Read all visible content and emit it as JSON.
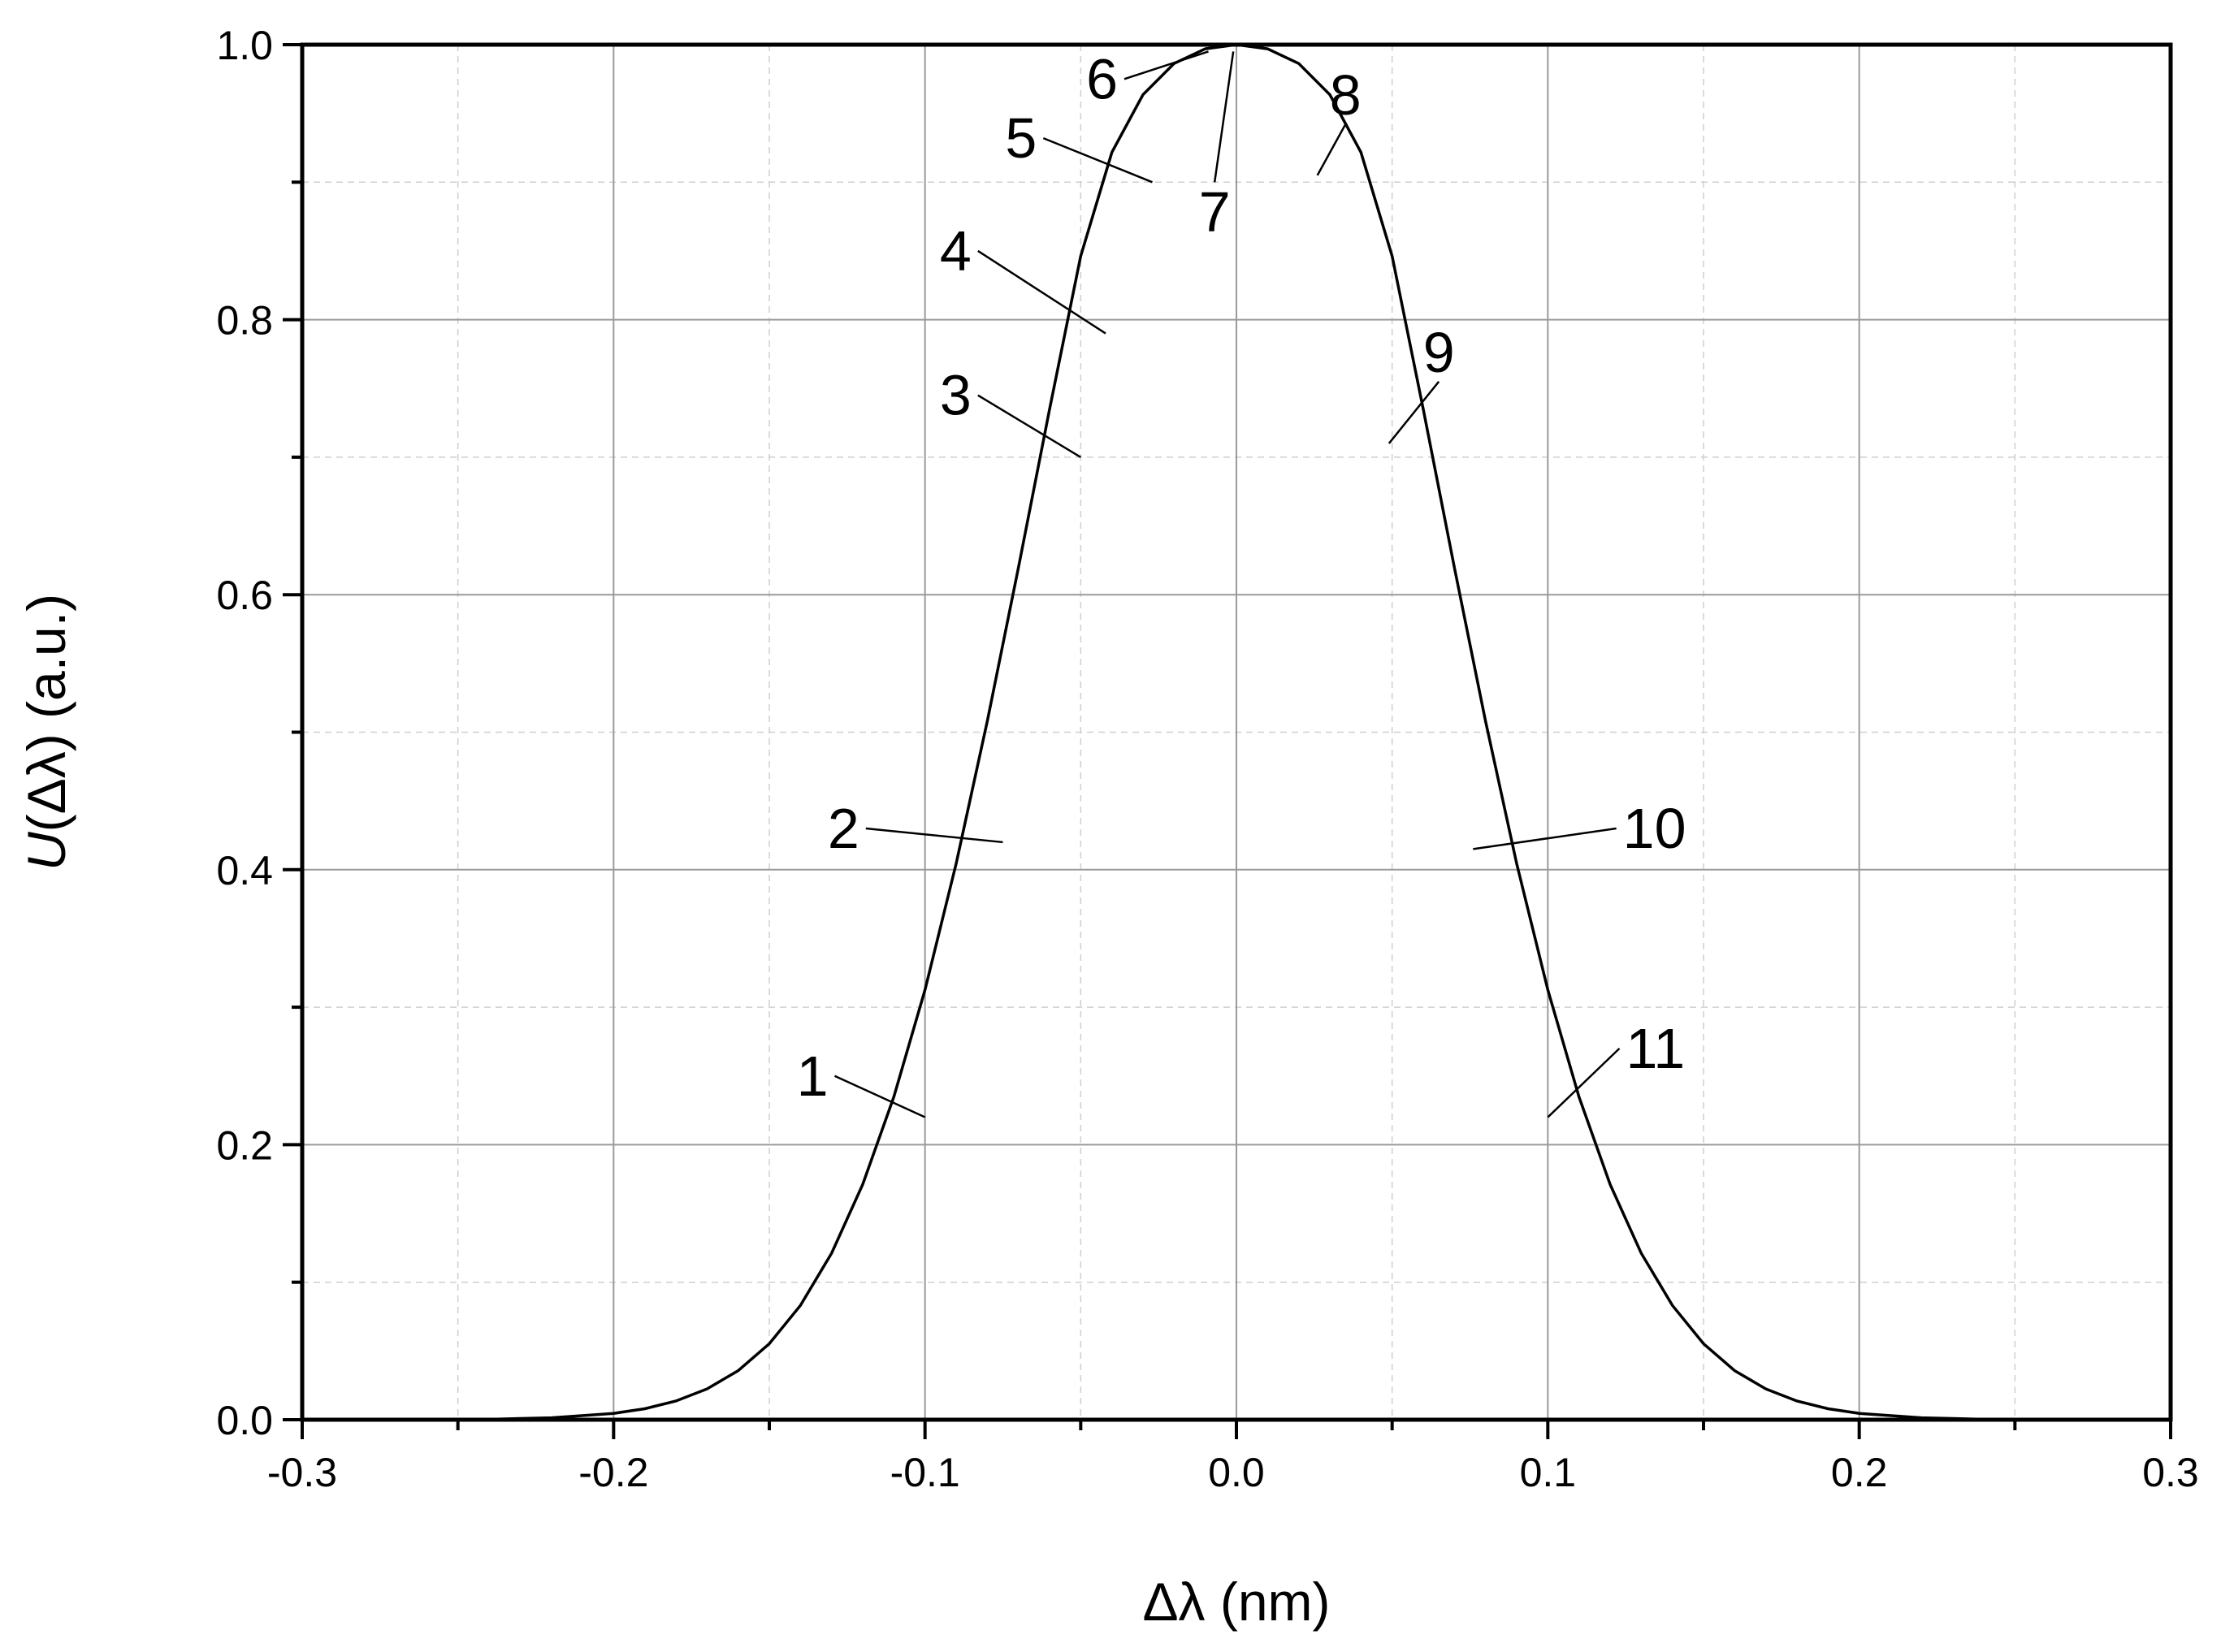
{
  "chart_data": {
    "type": "line",
    "title": "",
    "xlabel": "Δλ (nm)",
    "ylabel_italic": "U",
    "ylabel_rest": "(Δλ) (a.u.)",
    "xlim": [
      -0.3,
      0.3
    ],
    "ylim": [
      0.0,
      1.0
    ],
    "x_major_ticks": [
      -0.3,
      -0.2,
      -0.1,
      0.0,
      0.1,
      0.2,
      0.3
    ],
    "x_tick_labels": [
      "-0.3",
      "-0.2",
      "-0.1",
      "0.0",
      "0.1",
      "0.2",
      "0.3"
    ],
    "x_minor_ticks": [
      -0.25,
      -0.15,
      -0.05,
      0.05,
      0.15,
      0.25
    ],
    "y_major_ticks": [
      0.0,
      0.2,
      0.4,
      0.6,
      0.8,
      1.0
    ],
    "y_tick_labels": [
      "0.0",
      "0.2",
      "0.4",
      "0.6",
      "0.8",
      "1.0"
    ],
    "y_minor_ticks": [
      0.1,
      0.3,
      0.5,
      0.7,
      0.9
    ],
    "grid": true,
    "series": [
      {
        "x": [
          -0.3,
          -0.26,
          -0.24,
          -0.22,
          -0.2,
          -0.19,
          -0.18,
          -0.17,
          -0.16,
          -0.15,
          -0.14,
          -0.13,
          -0.12,
          -0.11,
          -0.1,
          -0.09,
          -0.08,
          -0.07,
          -0.06,
          -0.05,
          -0.04,
          -0.03,
          -0.02,
          -0.01,
          0.0,
          0.01,
          0.02,
          0.03,
          0.04,
          0.05,
          0.06,
          0.07,
          0.08,
          0.09,
          0.1,
          0.11,
          0.12,
          0.13,
          0.14,
          0.15,
          0.16,
          0.17,
          0.18,
          0.19,
          0.2,
          0.22,
          0.24,
          0.26,
          0.3
        ],
        "y": [
          0.0,
          0.0,
          0.0003,
          0.0014,
          0.0046,
          0.008,
          0.0136,
          0.0224,
          0.0357,
          0.0553,
          0.0831,
          0.1211,
          0.1712,
          0.2348,
          0.3127,
          0.4044,
          0.5079,
          0.6198,
          0.7349,
          0.8462,
          0.9217,
          0.9637,
          0.9863,
          0.997,
          1.0,
          0.997,
          0.9863,
          0.9637,
          0.9217,
          0.8462,
          0.7349,
          0.6198,
          0.5079,
          0.4044,
          0.3127,
          0.2348,
          0.1712,
          0.1211,
          0.0831,
          0.0553,
          0.0357,
          0.0224,
          0.0136,
          0.008,
          0.0046,
          0.0014,
          0.0003,
          0.0,
          0.0
        ]
      }
    ],
    "annotations": [
      {
        "text": "1",
        "point": [
          -0.1,
          0.22
        ],
        "label": [
          -0.129,
          0.25
        ]
      },
      {
        "text": "2",
        "point": [
          -0.075,
          0.42
        ],
        "label": [
          -0.119,
          0.43
        ]
      },
      {
        "text": "3",
        "point": [
          -0.05,
          0.7
        ],
        "label": [
          -0.083,
          0.745
        ]
      },
      {
        "text": "4",
        "point": [
          -0.042,
          0.79
        ],
        "label": [
          -0.083,
          0.85
        ]
      },
      {
        "text": "5",
        "point": [
          -0.027,
          0.9
        ],
        "label": [
          -0.062,
          0.932
        ]
      },
      {
        "text": "6",
        "point": [
          -0.009,
          0.995
        ],
        "label": [
          -0.036,
          0.975
        ]
      },
      {
        "text": "7",
        "point": [
          -0.001,
          0.995
        ],
        "label": [
          -0.007,
          0.9
        ]
      },
      {
        "text": "8",
        "point": [
          0.026,
          0.905
        ],
        "label": [
          0.035,
          0.942
        ]
      },
      {
        "text": "9",
        "point": [
          0.049,
          0.71
        ],
        "label": [
          0.065,
          0.755
        ]
      },
      {
        "text": "10",
        "point": [
          0.076,
          0.415
        ],
        "label": [
          0.122,
          0.43
        ]
      },
      {
        "text": "11",
        "point": [
          0.1,
          0.22
        ],
        "label": [
          0.123,
          0.27
        ]
      }
    ]
  }
}
